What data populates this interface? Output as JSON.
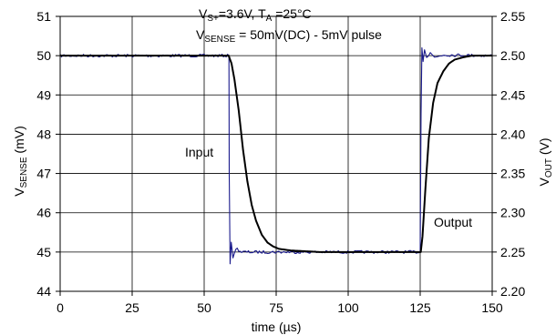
{
  "chart_data": {
    "type": "line",
    "annotations": {
      "line1": {
        "pre": "V",
        "sub": "S+",
        "post": "=3.6V, T",
        "sub2": "A",
        "post2": " =25°C"
      },
      "line2": {
        "pre": "V",
        "sub": "SENSE",
        "post": " = 50mV(DC) - 5mV pulse"
      }
    },
    "xlabel": "time (µs)",
    "ylabel_left": {
      "main": "V",
      "sub": "SENSE",
      "rest": " (mV)"
    },
    "ylabel_right": {
      "main": "V",
      "sub": "OUT",
      "rest": " (V)"
    },
    "xlim": [
      0,
      150
    ],
    "ylim_left": [
      44,
      51
    ],
    "ylim_right": [
      2.2,
      2.55
    ],
    "x_ticks": [
      "0",
      "25",
      "50",
      "75",
      "100",
      "125",
      "150"
    ],
    "y_left_ticks": [
      "44",
      "45",
      "46",
      "47",
      "48",
      "49",
      "50",
      "51"
    ],
    "y_right_ticks": [
      "2.20",
      "2.25",
      "2.30",
      "2.35",
      "2.40",
      "2.45",
      "2.50",
      "2.55"
    ],
    "grid": true,
    "series": [
      {
        "name": "Input",
        "axis": "left",
        "color": "#1a1a8c",
        "x": [
          0,
          58.6,
          58.7,
          59.0,
          59.4,
          60.0,
          61.0,
          63.0,
          125.0,
          125.3,
          125.6,
          126.0,
          126.5,
          127.2,
          128.5,
          130.0,
          133.0,
          150
        ],
        "y": [
          50.0,
          50.0,
          47.0,
          44.7,
          45.25,
          44.85,
          45.1,
          45.0,
          45.0,
          48.5,
          50.2,
          49.85,
          50.15,
          49.95,
          50.1,
          49.95,
          50.02,
          50.0
        ]
      },
      {
        "name": "Output",
        "axis": "right",
        "color": "#000000",
        "x": [
          0,
          58.5,
          59.5,
          60.5,
          62,
          63.5,
          65,
          66.5,
          68,
          70,
          72,
          74,
          76,
          80,
          85,
          90,
          125.2,
          125.8,
          126.8,
          128,
          129.5,
          131,
          133,
          135,
          137,
          140,
          143,
          146,
          150
        ],
        "y": [
          2.5,
          2.5,
          2.49,
          2.47,
          2.43,
          2.38,
          2.34,
          2.31,
          2.29,
          2.272,
          2.262,
          2.257,
          2.254,
          2.252,
          2.251,
          2.25,
          2.25,
          2.27,
          2.33,
          2.395,
          2.44,
          2.465,
          2.48,
          2.49,
          2.495,
          2.498,
          2.5,
          2.5,
          2.5
        ]
      }
    ]
  }
}
